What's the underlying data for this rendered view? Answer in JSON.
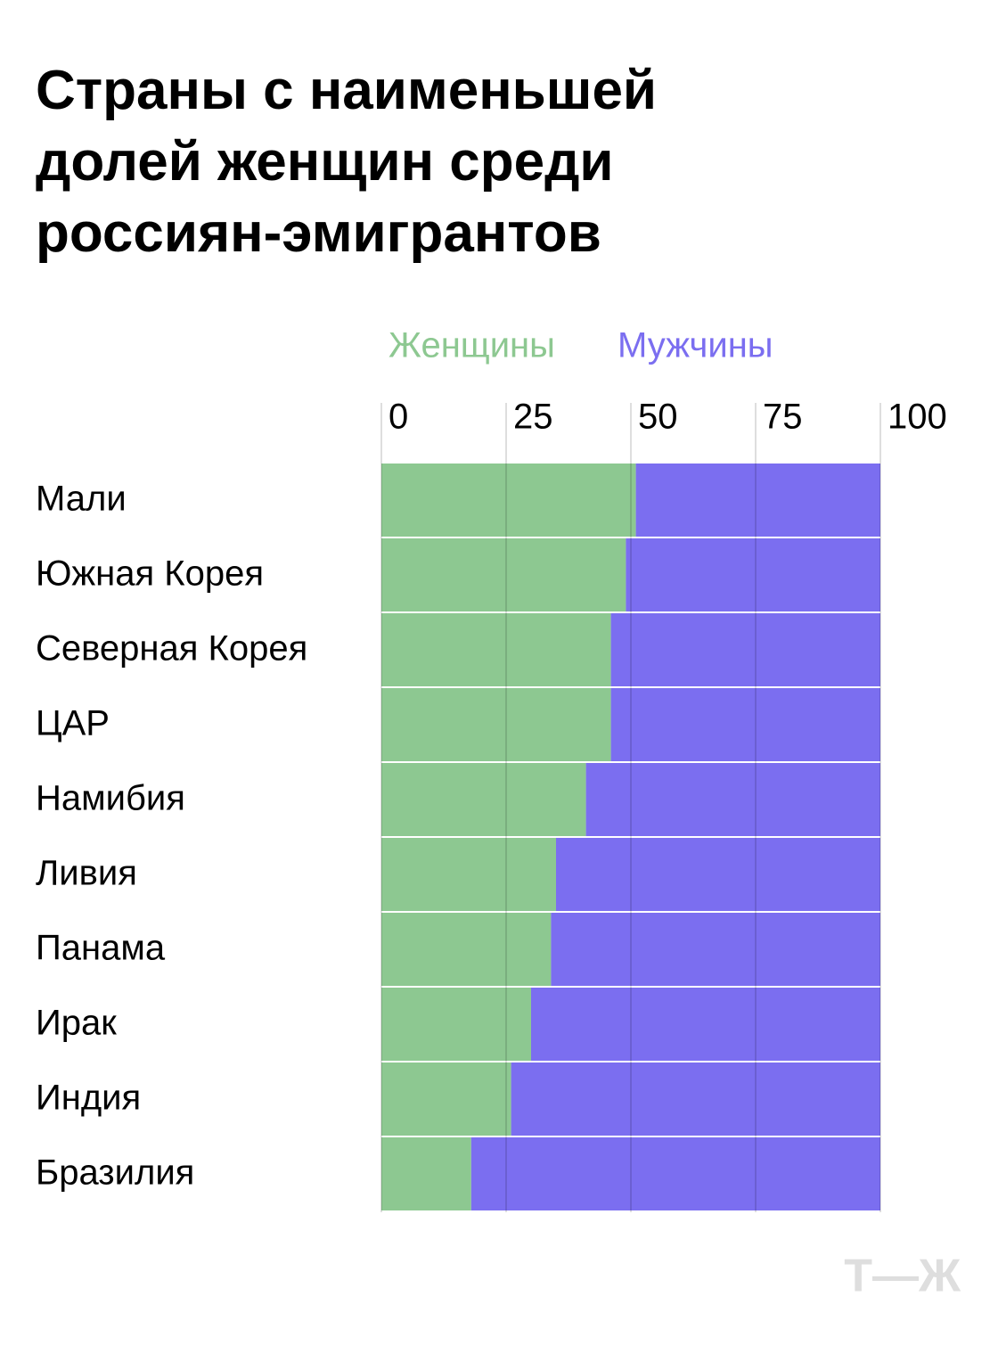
{
  "chart_data": {
    "type": "stacked_bar_horizontal",
    "title": "Страны с наименьшей долей женщин среди россиян-эмигрантов",
    "categories": [
      "Мали",
      "Южная Корея",
      "Северная Корея",
      "ЦАР",
      "Намибия",
      "Ливия",
      "Панама",
      "Ирак",
      "Индия",
      "Бразилия"
    ],
    "series": [
      {
        "name": "Женщины",
        "color": "#8dc891",
        "values": [
          51,
          49,
          46,
          46,
          41,
          35,
          34,
          30,
          26,
          18
        ]
      },
      {
        "name": "Мужчины",
        "color": "#7b6ef0",
        "values": [
          49,
          51,
          54,
          54,
          59,
          65,
          66,
          70,
          74,
          82
        ]
      }
    ],
    "xlim": [
      0,
      100
    ],
    "xticks": [
      0,
      25,
      50,
      75,
      100
    ],
    "grid": true,
    "logo": "Т—Ж"
  }
}
